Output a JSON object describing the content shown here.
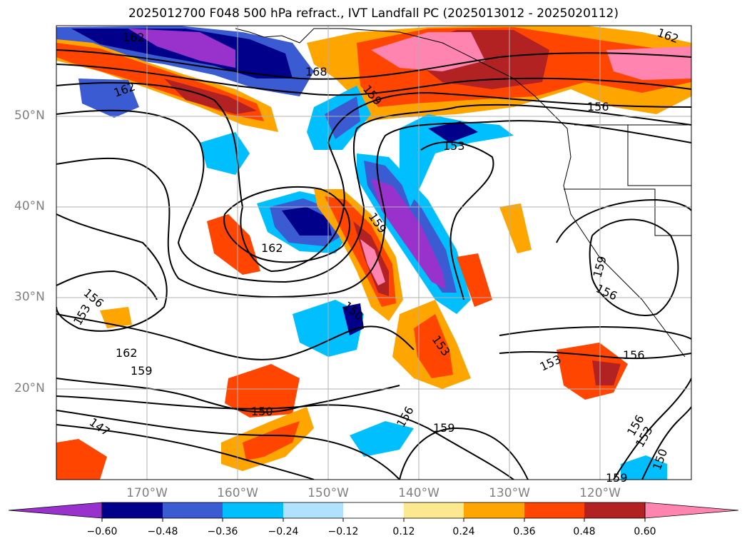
{
  "title": "2025012700 F048 500 hPa refract., IVT Landfall PC (2025013012 - 2025020112)",
  "map": {
    "lat_labels": [
      "50°N",
      "40°N",
      "30°N",
      "20°N"
    ],
    "lon_labels": [
      "170°W",
      "160°W",
      "150°W",
      "140°W",
      "130°W",
      "120°W"
    ]
  },
  "contour_labels": [
    "162",
    "168",
    "162",
    "159",
    "156",
    "153",
    "159",
    "162",
    "150",
    "156",
    "153",
    "162",
    "159",
    "153",
    "153",
    "156",
    "150",
    "147",
    "156",
    "159",
    "156",
    "153",
    "150",
    "159",
    "159",
    "156",
    "162"
  ],
  "colorbar": {
    "ticks": [
      "−0.60",
      "−0.48",
      "−0.36",
      "−0.24",
      "−0.12",
      "0.12",
      "0.24",
      "0.36",
      "0.48",
      "0.60"
    ],
    "colors": [
      "#9932cc",
      "#00008b",
      "#3a5bd1",
      "#00bfff",
      "#b0e2ff",
      "#ffffff",
      "#fce98f",
      "#ffa500",
      "#ff4500",
      "#b22222",
      "#ff85b0"
    ]
  }
}
